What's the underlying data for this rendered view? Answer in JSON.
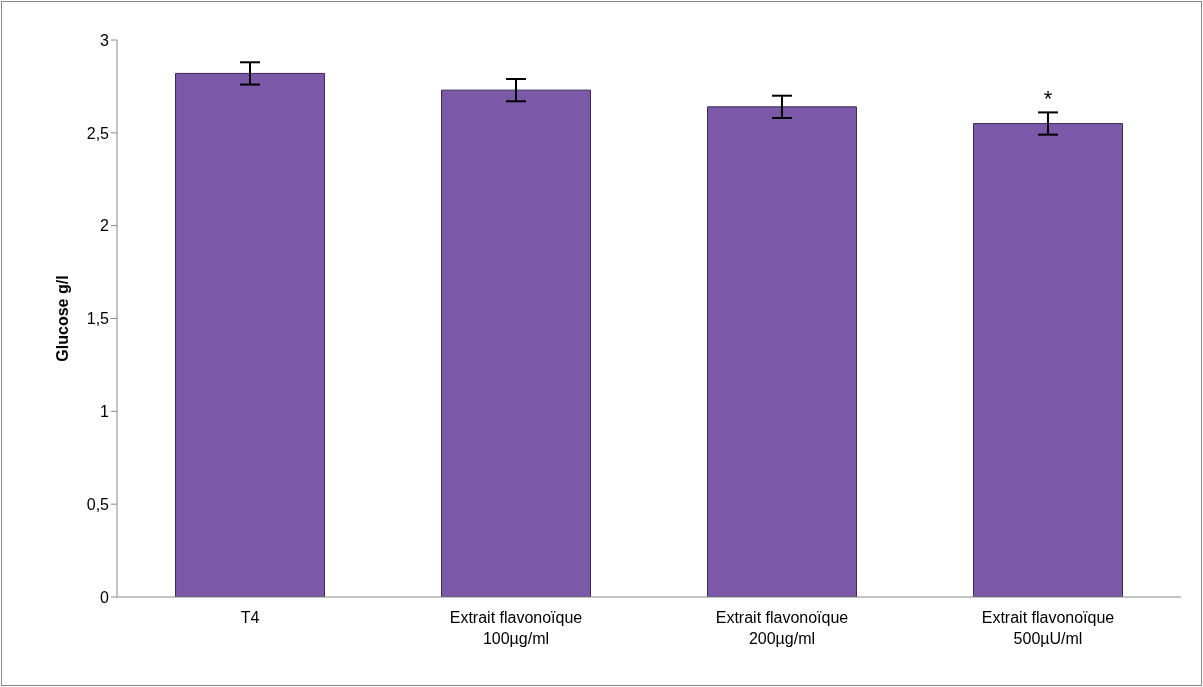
{
  "chart_data": {
    "type": "bar",
    "ylabel": "Glucose g/l",
    "categories": [
      "T4",
      "Extrait flavonoïque\n100µg/ml",
      "Extrait flavonoïque\n200µg/ml",
      "Extrait flavonoïque\n500µU/ml"
    ],
    "values": [
      2.82,
      2.73,
      2.64,
      2.55
    ],
    "errors": [
      0.06,
      0.06,
      0.06,
      0.06
    ],
    "color": "#7b58a8",
    "ylim": [
      0,
      3
    ],
    "yticks": [
      0,
      {
        "value": 0.5,
        "label": "0,5"
      },
      1,
      {
        "value": 1.5,
        "label": "1,5"
      },
      2,
      {
        "value": 2.5,
        "label": "2,5"
      },
      3
    ],
    "grid": false,
    "legend": false,
    "annotations": [
      "*"
    ]
  }
}
